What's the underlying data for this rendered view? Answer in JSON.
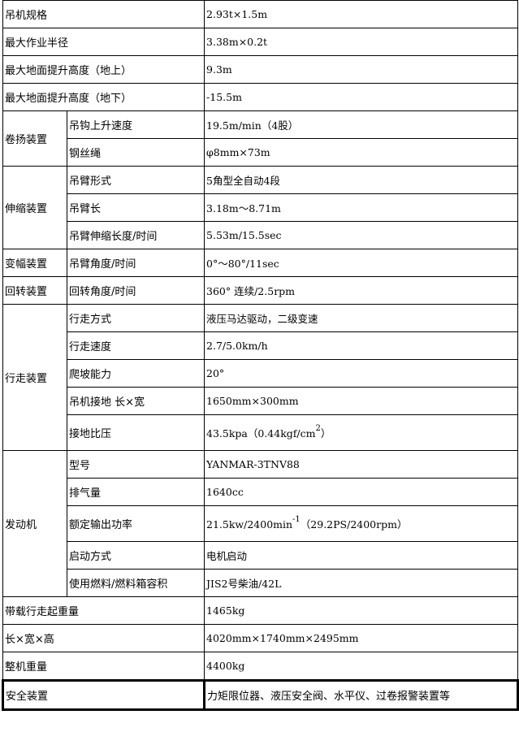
{
  "rows": [
    {
      "label": "吊机规格",
      "value": "2.93t×1.5m"
    },
    {
      "label": "最大作业半径",
      "value": "3.38m×0.2t"
    },
    {
      "label": "最大地面提升高度（地上）",
      "value": "9.3m"
    },
    {
      "label": "最大地面提升高度（地下）",
      "value": "-15.5m"
    }
  ],
  "groups": {
    "hoist": {
      "label": "卷扬装置",
      "items": [
        {
          "label": "吊钩上升速度",
          "value": "19.5m/min（4股）"
        },
        {
          "label": "钢丝绳",
          "value": " φ8mm×73m"
        }
      ]
    },
    "telescopic": {
      "label": "伸缩装置",
      "items": [
        {
          "label": "吊臂形式",
          "value": "5角型全自动4段"
        },
        {
          "label": "吊臂长",
          "value": "3.18m～8.71m"
        },
        {
          "label": "吊臂伸缩长度/时间",
          "value": "5.53m/15.5sec"
        }
      ]
    },
    "luffing": {
      "label": "变幅装置",
      "items": [
        {
          "label": "吊臂角度/时间",
          "value": "0°～80°/11sec"
        }
      ]
    },
    "slewing": {
      "label": "回转装置",
      "items": [
        {
          "label": "回转角度/时间",
          "value": "360° 连续/2.5rpm"
        }
      ]
    },
    "travel": {
      "label": "行走装置",
      "items": [
        {
          "label": "行走方式",
          "value": "液压马达驱动，二级变速"
        },
        {
          "label": "行走速度",
          "value": "2.7/5.0km/h"
        },
        {
          "label": "爬坡能力",
          "value": "20°"
        },
        {
          "label": "吊机接地 长×宽",
          "value": "1650mm×300mm"
        },
        {
          "label": "接地比压",
          "value": "43.5kpa（0.44kgf/cm",
          "sup": "2",
          "after": "）"
        }
      ]
    },
    "engine": {
      "label": "发动机",
      "items": [
        {
          "label": "型号",
          "value": "YANMAR-3TNV88"
        },
        {
          "label": "排气量",
          "value": "1640cc"
        },
        {
          "label": "额定输出功率",
          "value": "21.5kw/2400min",
          "sup": "-1",
          "after": "（29.2PS/2400rpm）"
        },
        {
          "label": "启动方式",
          "value": "电机启动"
        },
        {
          "label": "使用燃料/燃料箱容积",
          "value": "JIS2号柴油/42L"
        }
      ]
    }
  },
  "tail": [
    {
      "label": "带载行走起重量",
      "value": "1465kg"
    },
    {
      "label": "长×宽×高",
      "value": "4020mm×1740mm×2495mm"
    },
    {
      "label": "整机重量",
      "value": "4400kg"
    },
    {
      "label": "安全装置",
      "value": "力矩限位器、液压安全阀、水平仪、过卷报警装置等"
    }
  ]
}
